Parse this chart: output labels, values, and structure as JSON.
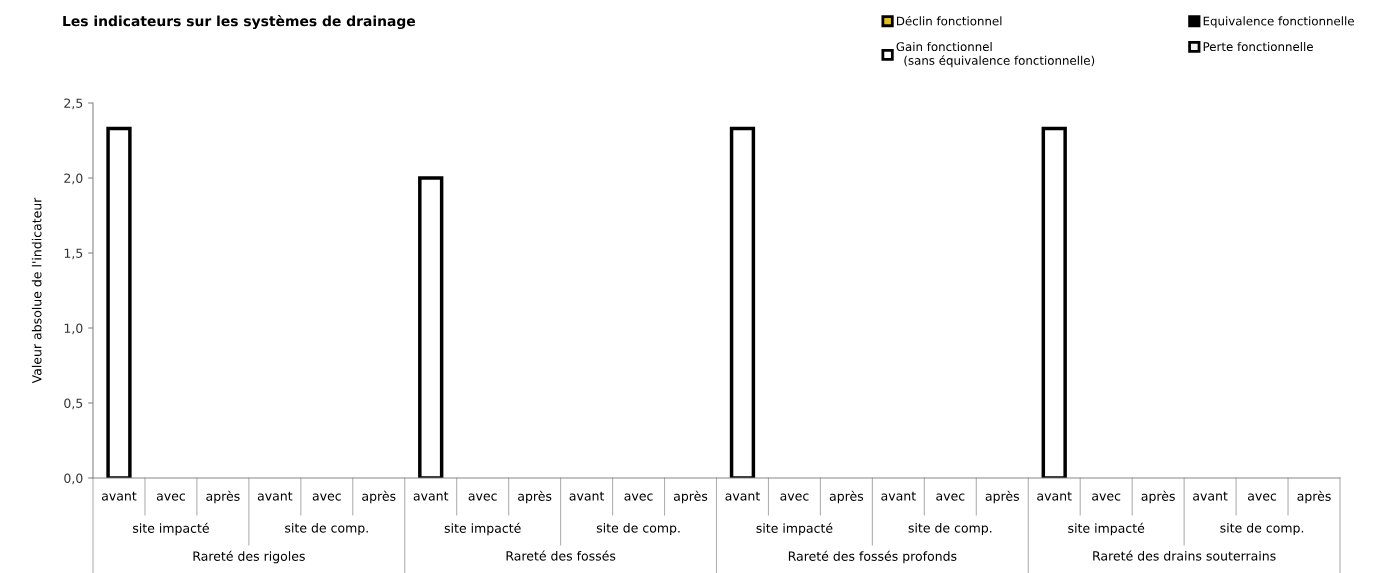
{
  "chart_data": {
    "type": "bar",
    "title": "Les indicateurs sur les systèmes de drainage",
    "ylabel": "Valeur absolue de l'indicateur",
    "categories": [
      "avant",
      "avec",
      "après",
      "avant",
      "avec",
      "après",
      "avant",
      "avec",
      "après",
      "avant",
      "avec",
      "après",
      "avant",
      "avec",
      "après",
      "avant",
      "avec",
      "après",
      "avant",
      "avec",
      "après",
      "avant",
      "avec",
      "après"
    ],
    "series": [
      {
        "name": "Déclin fonctionnel",
        "color": "#e0c020",
        "values": [
          null,
          null,
          null,
          null,
          null,
          null,
          null,
          null,
          null,
          null,
          null,
          null,
          null,
          null,
          null,
          null,
          null,
          null,
          null,
          null,
          null,
          null,
          null,
          null
        ]
      },
      {
        "name": "Equivalence fonctionnelle",
        "color": "#000000",
        "values": [
          null,
          null,
          null,
          null,
          null,
          null,
          null,
          null,
          null,
          null,
          null,
          null,
          null,
          null,
          null,
          null,
          null,
          null,
          null,
          null,
          null,
          null,
          null,
          null
        ]
      },
      {
        "name": "Gain fonctionnel\n  (sans équivalence fonctionnelle)",
        "color": "#ffffff",
        "values": [
          2.33,
          null,
          null,
          null,
          null,
          null,
          2.0,
          null,
          null,
          null,
          null,
          null,
          2.33,
          null,
          null,
          null,
          null,
          null,
          2.33,
          null,
          null,
          null,
          null,
          null
        ]
      },
      {
        "name": "Perte fonctionnelle",
        "color": "#f2f2f2",
        "values": [
          null,
          null,
          null,
          null,
          null,
          null,
          null,
          null,
          null,
          null,
          null,
          null,
          null,
          null,
          null,
          null,
          null,
          null,
          null,
          null,
          null,
          null,
          null,
          null
        ]
      }
    ],
    "annotations": [
      "site impacté",
      "site de comp.",
      "site impacté",
      "site de comp.",
      "site impacté",
      "site de comp.",
      "site impacté",
      "site de comp.",
      "Rareté des rigoles",
      "Rareté des fossés",
      "Rareté des fossés profonds",
      "Rareté des drains souterrains"
    ],
    "ylim": [
      0,
      2.5
    ],
    "yticks": [
      {
        "value": 0,
        "label": "0,0"
      },
      {
        "value": 0.5,
        "label": "0,5"
      },
      {
        "value": 1,
        "label": "1,0"
      },
      {
        "value": 1.5,
        "label": "1,5"
      },
      {
        "value": 2,
        "label": "2,0"
      },
      {
        "value": 2.5,
        "label": "2,5"
      }
    ],
    "grid": false,
    "legend": "top right"
  }
}
